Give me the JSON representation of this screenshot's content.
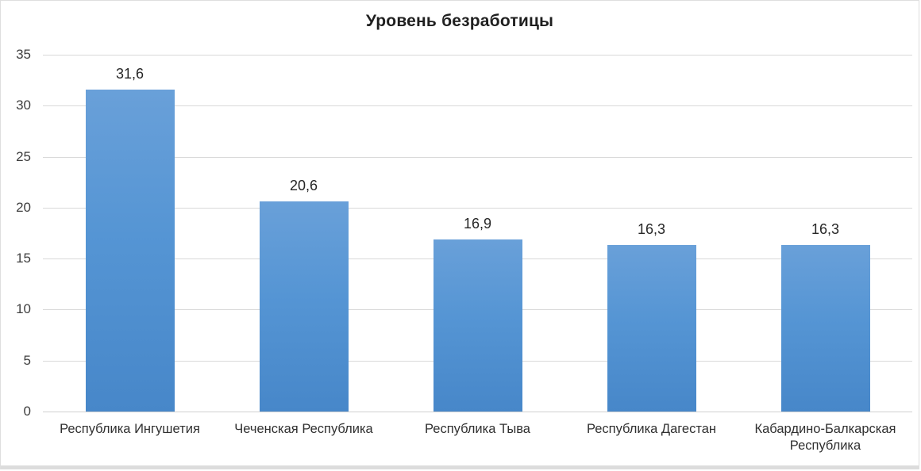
{
  "chart_data": {
    "type": "bar",
    "title": "Уровень безработицы",
    "categories": [
      "Республика Ингушетия",
      "Чеченская Республика",
      "Республика Тыва",
      "Республика Дагестан",
      "Кабардино-Балкарская Республика"
    ],
    "values": [
      31.6,
      20.6,
      16.9,
      16.3,
      16.3
    ],
    "value_labels": [
      "31,6",
      "20,6",
      "16,9",
      "16,3",
      "16,3"
    ],
    "xlabel": "",
    "ylabel": "",
    "ylim": [
      0,
      35
    ],
    "yticks": [
      0,
      5,
      10,
      15,
      20,
      25,
      30,
      35
    ],
    "grid": true,
    "legend_position": "none",
    "bar_color_top": "#69a0d9",
    "bar_color_bottom": "#4787c9",
    "gridline_color": "#d9d9d9",
    "title_color": "#1f1f1f",
    "label_color": "#262626"
  }
}
